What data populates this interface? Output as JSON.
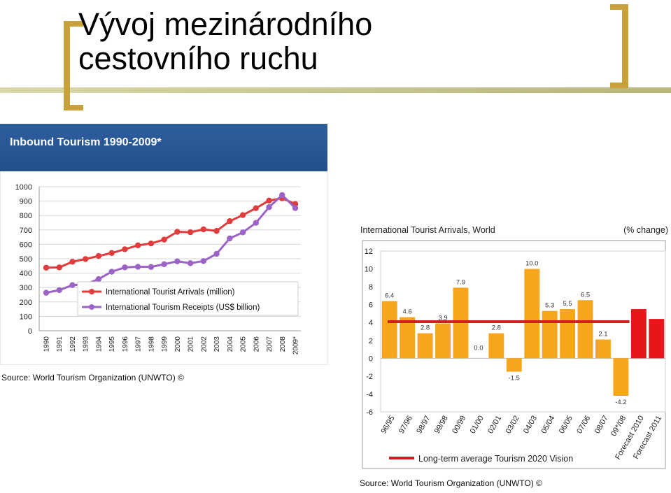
{
  "slide": {
    "title_line1": "Vývoj mezinárodního",
    "title_line2": "cestovního ruchu"
  },
  "colors": {
    "accent_gold": "#c8a13a",
    "header_blue": "#2a5894",
    "arrivals_red": "#e03c3c",
    "receipts_purple": "#9b63c5",
    "bar_orange": "#f7a51a",
    "bar_red": "#e8151b",
    "avg_line": "#d01f1f"
  },
  "chart_data": [
    {
      "type": "line",
      "title": "Inbound Tourism 1990-2009*",
      "source": "Source: World Tourism Organization (UNWTO) ©",
      "x": [
        "1990",
        "1991",
        "1992",
        "1993",
        "1994",
        "1995",
        "1996",
        "1997",
        "1998",
        "1999",
        "2000",
        "2001",
        "2002",
        "2003",
        "2004",
        "2005",
        "2006",
        "2007",
        "2008",
        "2009*"
      ],
      "ylim": [
        0,
        1000
      ],
      "yticks": [
        "1000",
        "900",
        "800",
        "700",
        "600",
        "500",
        "400",
        "300",
        "200",
        "100",
        "0"
      ],
      "legend_position": "bottom-left",
      "grid": true,
      "series": [
        {
          "name": "International Tourist Arrivals (million)",
          "color": "#e03c3c",
          "values": [
            438,
            440,
            479,
            498,
            519,
            540,
            566,
            593,
            606,
            633,
            687,
            684,
            704,
            693,
            761,
            803,
            851,
            904,
            920,
            880
          ]
        },
        {
          "name": "International Tourism Receipts (US$ billion)",
          "color": "#9b63c5",
          "values": [
            264,
            282,
            317,
            322,
            359,
            410,
            440,
            444,
            443,
            462,
            482,
            469,
            484,
            534,
            641,
            683,
            749,
            858,
            942,
            852
          ]
        }
      ]
    },
    {
      "type": "bar",
      "title": "International Tourist Arrivals, World",
      "unit_label": "(% change)",
      "source": "Source: World Tourism Organization (UNWTO) ©",
      "categories": [
        "96/95",
        "97/96",
        "98/97",
        "99/98",
        "00/99",
        "01/00",
        "02/01",
        "03/02",
        "04/03",
        "05/04",
        "06/05",
        "07/06",
        "08/07",
        "09*/08",
        "Forecast 2010",
        "Forecast 2011"
      ],
      "values": [
        6.4,
        4.6,
        2.8,
        3.9,
        7.9,
        0.0,
        2.8,
        -1.5,
        10.0,
        5.3,
        5.5,
        6.5,
        2.1,
        -4.2,
        5.5,
        4.4
      ],
      "data_labels": [
        "6.4",
        "4.6",
        "2.8",
        "3.9",
        "7.9",
        "0.0",
        "2.8",
        "-1.5",
        "10.0",
        "5.3",
        "5.5",
        "6.5",
        "2.1",
        "-4.2",
        "",
        ""
      ],
      "forecast_flags": [
        false,
        false,
        false,
        false,
        false,
        false,
        false,
        false,
        false,
        false,
        false,
        false,
        false,
        false,
        true,
        true
      ],
      "ylim": [
        -6,
        12
      ],
      "yticks": [
        "12",
        "10",
        "8",
        "6",
        "4",
        "2",
        "0",
        "-2",
        "-4",
        "-6"
      ],
      "reference_line": {
        "value": 4.1,
        "label": "Long-term average Tourism 2020 Vision"
      },
      "grid": false
    }
  ]
}
